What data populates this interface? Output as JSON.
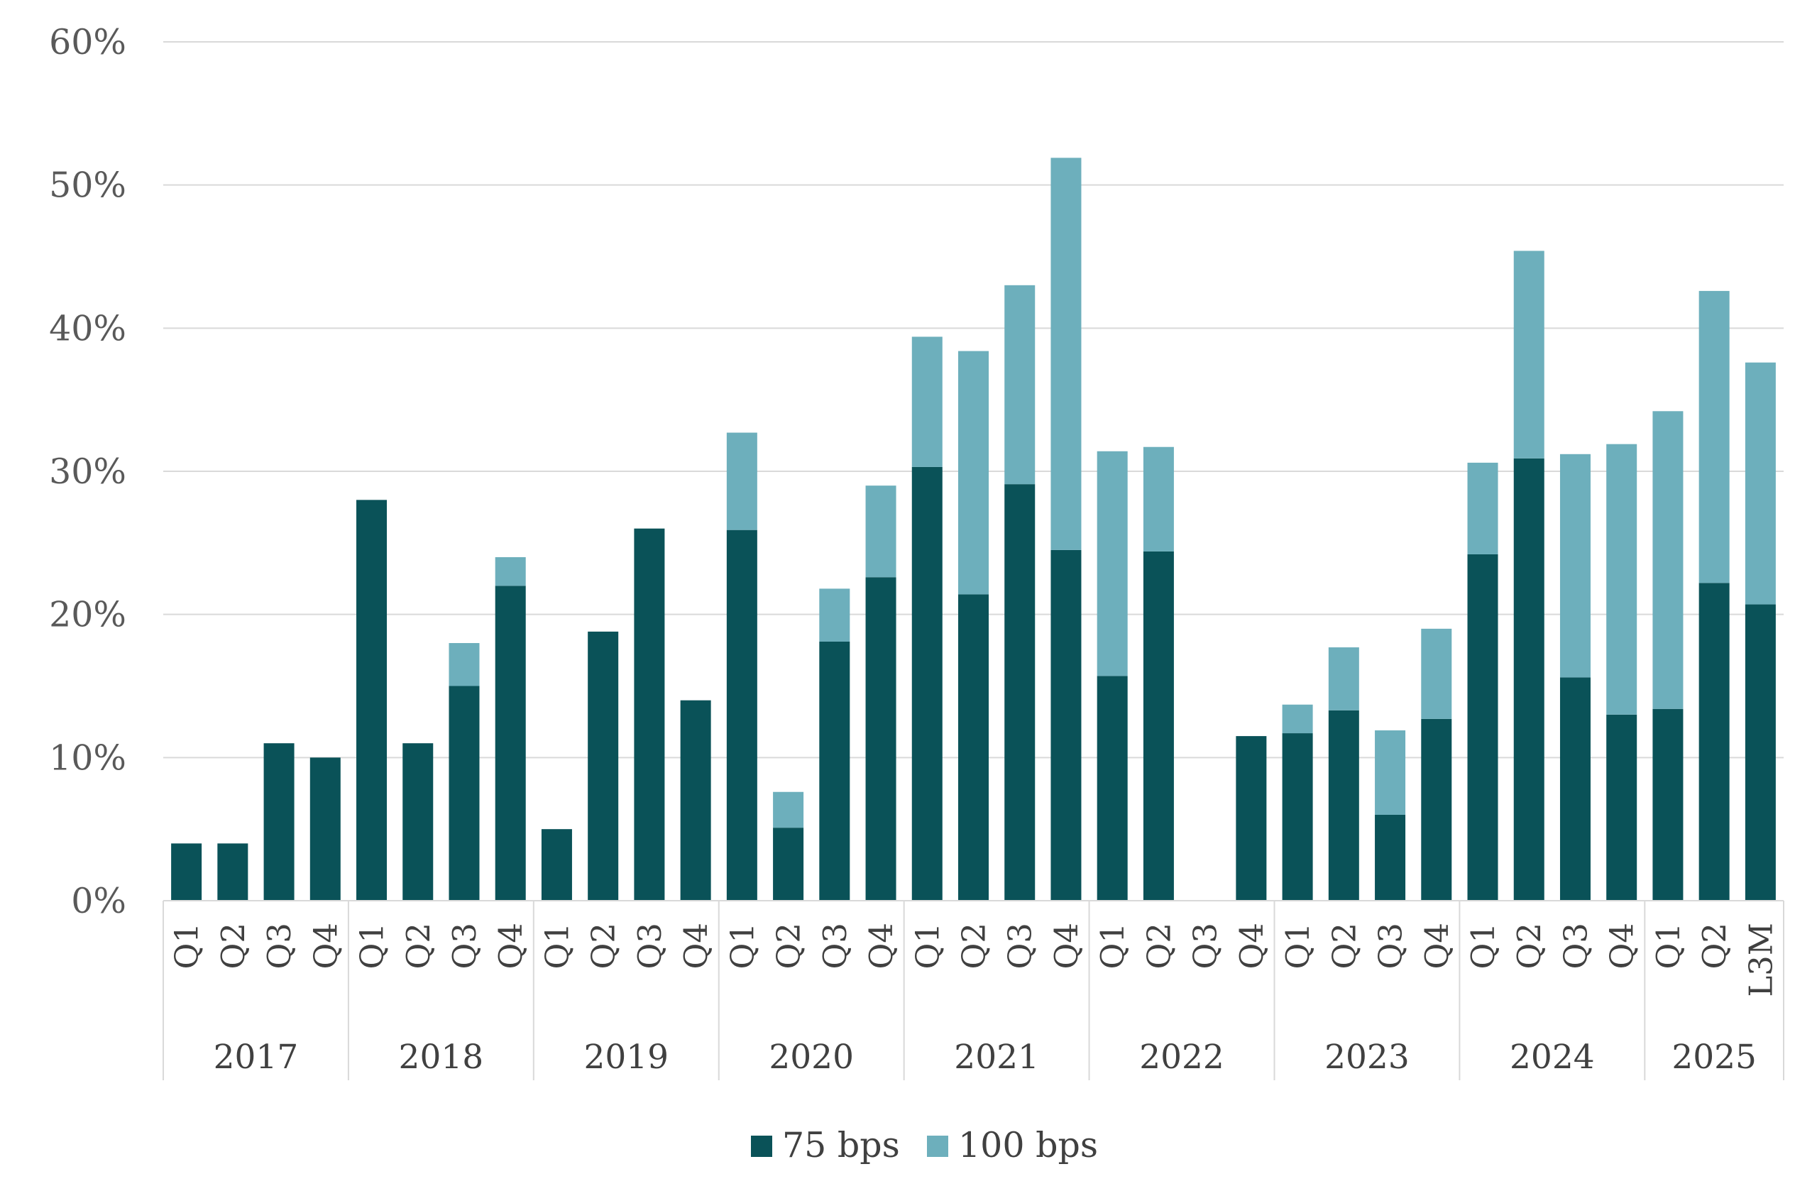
{
  "chart_data": {
    "type": "bar",
    "stacked": true,
    "grid": true,
    "legend_position": "bottom-center",
    "ylim": [
      0,
      60
    ],
    "y_ticks": [
      "0%",
      "10%",
      "20%",
      "30%",
      "40%",
      "50%",
      "60%"
    ],
    "groups": [
      {
        "year": "2017",
        "quarters": [
          "Q1",
          "Q2",
          "Q3",
          "Q4"
        ]
      },
      {
        "year": "2018",
        "quarters": [
          "Q1",
          "Q2",
          "Q3",
          "Q4"
        ]
      },
      {
        "year": "2019",
        "quarters": [
          "Q1",
          "Q2",
          "Q3",
          "Q4"
        ]
      },
      {
        "year": "2020",
        "quarters": [
          "Q1",
          "Q2",
          "Q3",
          "Q4"
        ]
      },
      {
        "year": "2021",
        "quarters": [
          "Q1",
          "Q2",
          "Q3",
          "Q4"
        ]
      },
      {
        "year": "2022",
        "quarters": [
          "Q1",
          "Q2",
          "Q3",
          "Q4"
        ]
      },
      {
        "year": "2023",
        "quarters": [
          "Q1",
          "Q2",
          "Q3",
          "Q4"
        ]
      },
      {
        "year": "2024",
        "quarters": [
          "Q1",
          "Q2",
          "Q3",
          "Q4"
        ]
      },
      {
        "year": "2025",
        "quarters": [
          "Q1",
          "Q2",
          "L3M"
        ]
      }
    ],
    "series": [
      {
        "name": "75 bps",
        "color": "#0a5258",
        "values": [
          4,
          4,
          11,
          10,
          28,
          11,
          15,
          22,
          5,
          18.8,
          26,
          14,
          25.9,
          5.1,
          18.1,
          22.6,
          30.3,
          21.4,
          29.1,
          24.5,
          15.7,
          24.4,
          0,
          11.5,
          11.7,
          13.3,
          6,
          12.7,
          24.2,
          30.9,
          15.6,
          13,
          13.4,
          22.2,
          20.7
        ]
      },
      {
        "name": "100 bps",
        "color": "#6dafbc",
        "values": [
          0,
          0,
          0,
          0,
          0,
          0,
          3,
          2,
          0,
          0,
          0,
          0,
          6.8,
          2.5,
          3.7,
          6.4,
          9.1,
          17,
          13.9,
          27.4,
          15.7,
          7.3,
          0,
          0,
          2,
          4.4,
          5.9,
          6.3,
          6.4,
          14.5,
          15.6,
          18.9,
          20.8,
          20.4,
          16.9
        ]
      }
    ]
  },
  "legend": {
    "items": [
      {
        "label": "75 bps",
        "color": "#0a5258"
      },
      {
        "label": "100 bps",
        "color": "#6dafbc"
      }
    ]
  }
}
